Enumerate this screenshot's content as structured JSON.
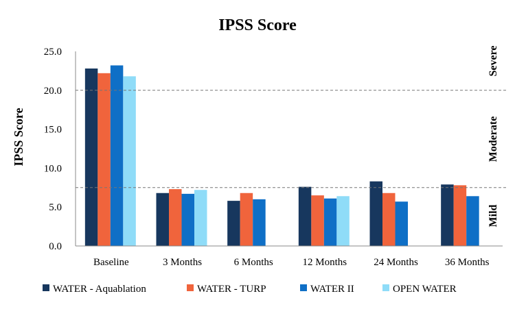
{
  "chart_data": {
    "type": "bar",
    "title": "IPSS Score",
    "ylabel": "IPSS Score",
    "xlabel": "",
    "ylim": [
      0,
      25
    ],
    "yticks": [
      "0.0",
      "5.0",
      "10.0",
      "15.0",
      "20.0",
      "25.0"
    ],
    "categories": [
      "Baseline",
      "3 Months",
      "6 Months",
      "12 Months",
      "24 Months",
      "36 Months"
    ],
    "series": [
      {
        "name": "WATER - Aquablation",
        "color": "#17375e",
        "values": [
          22.8,
          6.8,
          5.8,
          7.6,
          8.3,
          7.9
        ]
      },
      {
        "name": "WATER - TURP",
        "color": "#f0643c",
        "values": [
          22.2,
          7.3,
          6.8,
          6.5,
          6.8,
          7.8
        ]
      },
      {
        "name": "WATER II",
        "color": "#0f6fc6",
        "values": [
          23.2,
          6.7,
          6.0,
          6.1,
          5.7,
          6.4
        ]
      },
      {
        "name": "OPEN WATER",
        "color": "#8fdcf8",
        "values": [
          21.8,
          7.2,
          null,
          6.4,
          null,
          null
        ]
      }
    ],
    "thresholds": [
      20,
      7.5
    ],
    "severity_bands": [
      "Severe",
      "Moderate",
      "Mild"
    ],
    "grid": false,
    "legend_position": "bottom"
  }
}
